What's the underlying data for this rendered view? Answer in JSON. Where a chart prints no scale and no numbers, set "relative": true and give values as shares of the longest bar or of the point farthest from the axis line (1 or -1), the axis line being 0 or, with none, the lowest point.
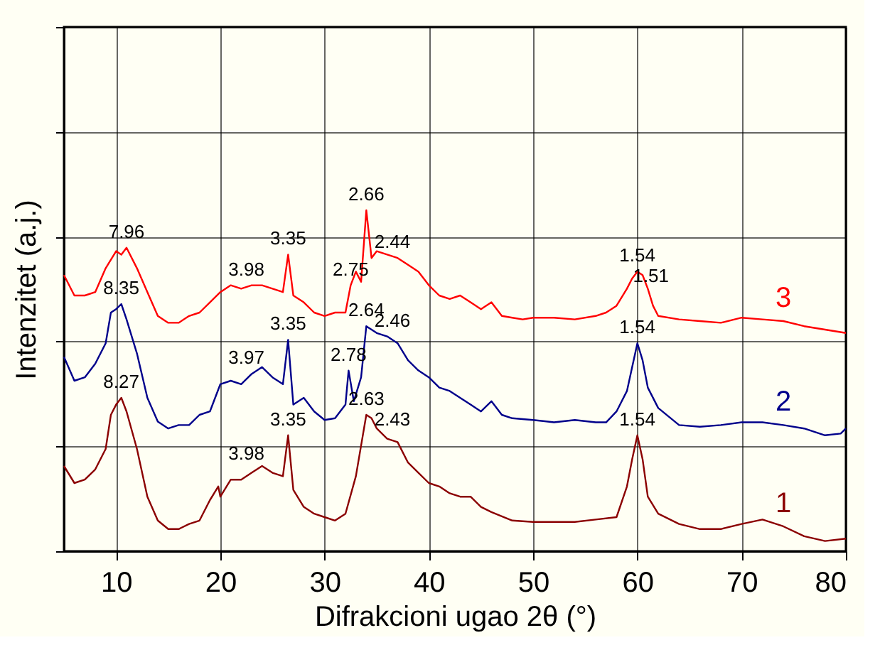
{
  "chart_data": {
    "type": "line",
    "xlabel": "Difrakcioni ugao 2θ (°)",
    "ylabel": "Intenzitet (a.j.)",
    "relative": true,
    "tick_labels": "x",
    "grid": true,
    "legend": false,
    "marker": "none",
    "line_style": "solid",
    "xlim": [
      5,
      80
    ],
    "xticks": [
      10,
      20,
      30,
      40,
      50,
      60,
      70,
      80
    ],
    "series": [
      {
        "name": "1",
        "color": "#8b0000",
        "x": [
          5,
          6,
          7,
          8,
          9,
          9.5,
          10,
          10.5,
          11,
          12,
          13,
          14,
          15,
          16,
          17,
          18,
          19,
          19.8,
          20,
          21,
          22,
          23,
          24,
          25,
          26,
          26.5,
          27,
          28,
          29,
          30,
          31,
          32,
          33,
          34,
          34.5,
          35,
          36,
          37,
          38,
          39,
          40,
          41,
          42,
          43,
          44,
          45,
          46,
          48,
          50,
          52,
          54,
          56,
          58,
          59,
          59.5,
          60,
          60.5,
          61,
          62,
          64,
          66,
          68,
          70,
          72,
          74,
          76,
          78,
          80
        ],
        "values": [
          0.25,
          0.2,
          0.21,
          0.24,
          0.3,
          0.4,
          0.43,
          0.45,
          0.41,
          0.3,
          0.16,
          0.09,
          0.065,
          0.065,
          0.08,
          0.09,
          0.15,
          0.19,
          0.16,
          0.21,
          0.21,
          0.23,
          0.25,
          0.23,
          0.22,
          0.34,
          0.18,
          0.13,
          0.11,
          0.1,
          0.09,
          0.11,
          0.22,
          0.4,
          0.39,
          0.36,
          0.33,
          0.32,
          0.26,
          0.23,
          0.2,
          0.19,
          0.17,
          0.16,
          0.16,
          0.13,
          0.115,
          0.09,
          0.086,
          0.086,
          0.086,
          0.093,
          0.1,
          0.19,
          0.27,
          0.34,
          0.27,
          0.16,
          0.11,
          0.08,
          0.065,
          0.065,
          0.08,
          0.093,
          0.073,
          0.044,
          0.03,
          0.037
        ]
      },
      {
        "name": "2",
        "color": "#00008b",
        "x": [
          5,
          6,
          7,
          8,
          9,
          9.5,
          10,
          10.5,
          11,
          12,
          13,
          14,
          15,
          16,
          17,
          18,
          19,
          20,
          21,
          22,
          23,
          24,
          25,
          26,
          26.5,
          27,
          28,
          29,
          30,
          31,
          32,
          32.3,
          32.8,
          33.5,
          34,
          35,
          36,
          37,
          38,
          39,
          40,
          41,
          42,
          43,
          44,
          45,
          46,
          47,
          48,
          50,
          52,
          54,
          56,
          57,
          58,
          59,
          59.5,
          60,
          60.5,
          61,
          62,
          64,
          66,
          68,
          70,
          72,
          74,
          76,
          78,
          79.5,
          80
        ],
        "values": [
          0.57,
          0.5,
          0.51,
          0.55,
          0.61,
          0.7,
          0.71,
          0.725,
          0.68,
          0.58,
          0.45,
          0.38,
          0.36,
          0.37,
          0.37,
          0.4,
          0.41,
          0.49,
          0.5,
          0.49,
          0.52,
          0.54,
          0.51,
          0.49,
          0.62,
          0.43,
          0.45,
          0.41,
          0.385,
          0.39,
          0.43,
          0.53,
          0.44,
          0.51,
          0.66,
          0.64,
          0.63,
          0.61,
          0.56,
          0.53,
          0.51,
          0.48,
          0.47,
          0.45,
          0.43,
          0.41,
          0.44,
          0.4,
          0.39,
          0.385,
          0.378,
          0.385,
          0.378,
          0.378,
          0.41,
          0.47,
          0.54,
          0.61,
          0.56,
          0.48,
          0.42,
          0.37,
          0.365,
          0.37,
          0.378,
          0.378,
          0.37,
          0.36,
          0.34,
          0.345,
          0.36
        ]
      },
      {
        "name": "3",
        "color": "#ff0000",
        "x": [
          5,
          6,
          7,
          8,
          9,
          10,
          10.5,
          11,
          12,
          13,
          14,
          15,
          16,
          17,
          18,
          19,
          20,
          21,
          22,
          23,
          24,
          25,
          26,
          26.5,
          27,
          28,
          29,
          30,
          31,
          32,
          32.5,
          33,
          33.5,
          34,
          34.5,
          35,
          36,
          37,
          38,
          39,
          40,
          41,
          42,
          43,
          44,
          45,
          46,
          47,
          48,
          49,
          50,
          52,
          54,
          56,
          57,
          58,
          59,
          59.5,
          60,
          60.5,
          61,
          61.5,
          62,
          64,
          66,
          68,
          70,
          72,
          74,
          76,
          78,
          80
        ],
        "values": [
          0.81,
          0.75,
          0.75,
          0.76,
          0.83,
          0.88,
          0.87,
          0.89,
          0.83,
          0.76,
          0.69,
          0.67,
          0.67,
          0.69,
          0.7,
          0.73,
          0.76,
          0.78,
          0.77,
          0.78,
          0.78,
          0.77,
          0.76,
          0.87,
          0.75,
          0.73,
          0.7,
          0.69,
          0.7,
          0.7,
          0.78,
          0.82,
          0.79,
          1.0,
          0.86,
          0.88,
          0.87,
          0.86,
          0.84,
          0.82,
          0.78,
          0.75,
          0.74,
          0.75,
          0.73,
          0.71,
          0.73,
          0.69,
          0.685,
          0.68,
          0.685,
          0.685,
          0.68,
          0.69,
          0.7,
          0.72,
          0.77,
          0.8,
          0.82,
          0.81,
          0.77,
          0.72,
          0.69,
          0.68,
          0.675,
          0.67,
          0.685,
          0.68,
          0.675,
          0.66,
          0.65,
          0.64
        ]
      }
    ],
    "annotations": [
      {
        "text": "7.96",
        "x": 11,
        "y": 0.89
      },
      {
        "text": "3.98",
        "x": 22.5,
        "y": 0.78
      },
      {
        "text": "3.35",
        "x": 26.5,
        "y": 0.87
      },
      {
        "text": "2.75",
        "x": 32.5,
        "y": 0.78
      },
      {
        "text": "2.66",
        "x": 34,
        "y": 1.0
      },
      {
        "text": "2.44",
        "x": 36.5,
        "y": 0.86
      },
      {
        "text": "1.54",
        "x": 60,
        "y": 0.82
      },
      {
        "text": "1.51",
        "x": 61.3,
        "y": 0.76
      },
      {
        "text": "8.35",
        "x": 10.5,
        "y": 0.725
      },
      {
        "text": "3.97",
        "x": 22.5,
        "y": 0.52
      },
      {
        "text": "3.35",
        "x": 26.5,
        "y": 0.62
      },
      {
        "text": "2.78",
        "x": 32.3,
        "y": 0.53
      },
      {
        "text": "2.64",
        "x": 34,
        "y": 0.66
      },
      {
        "text": "2.46",
        "x": 36.5,
        "y": 0.63
      },
      {
        "text": "1.54",
        "x": 60,
        "y": 0.61
      },
      {
        "text": "8.27",
        "x": 10.5,
        "y": 0.45
      },
      {
        "text": "3.98",
        "x": 22.5,
        "y": 0.24
      },
      {
        "text": "3.35",
        "x": 26.5,
        "y": 0.34
      },
      {
        "text": "2.63",
        "x": 34,
        "y": 0.4
      },
      {
        "text": "2.43",
        "x": 36.5,
        "y": 0.34
      },
      {
        "text": "1.54",
        "x": 60,
        "y": 0.34
      }
    ]
  }
}
